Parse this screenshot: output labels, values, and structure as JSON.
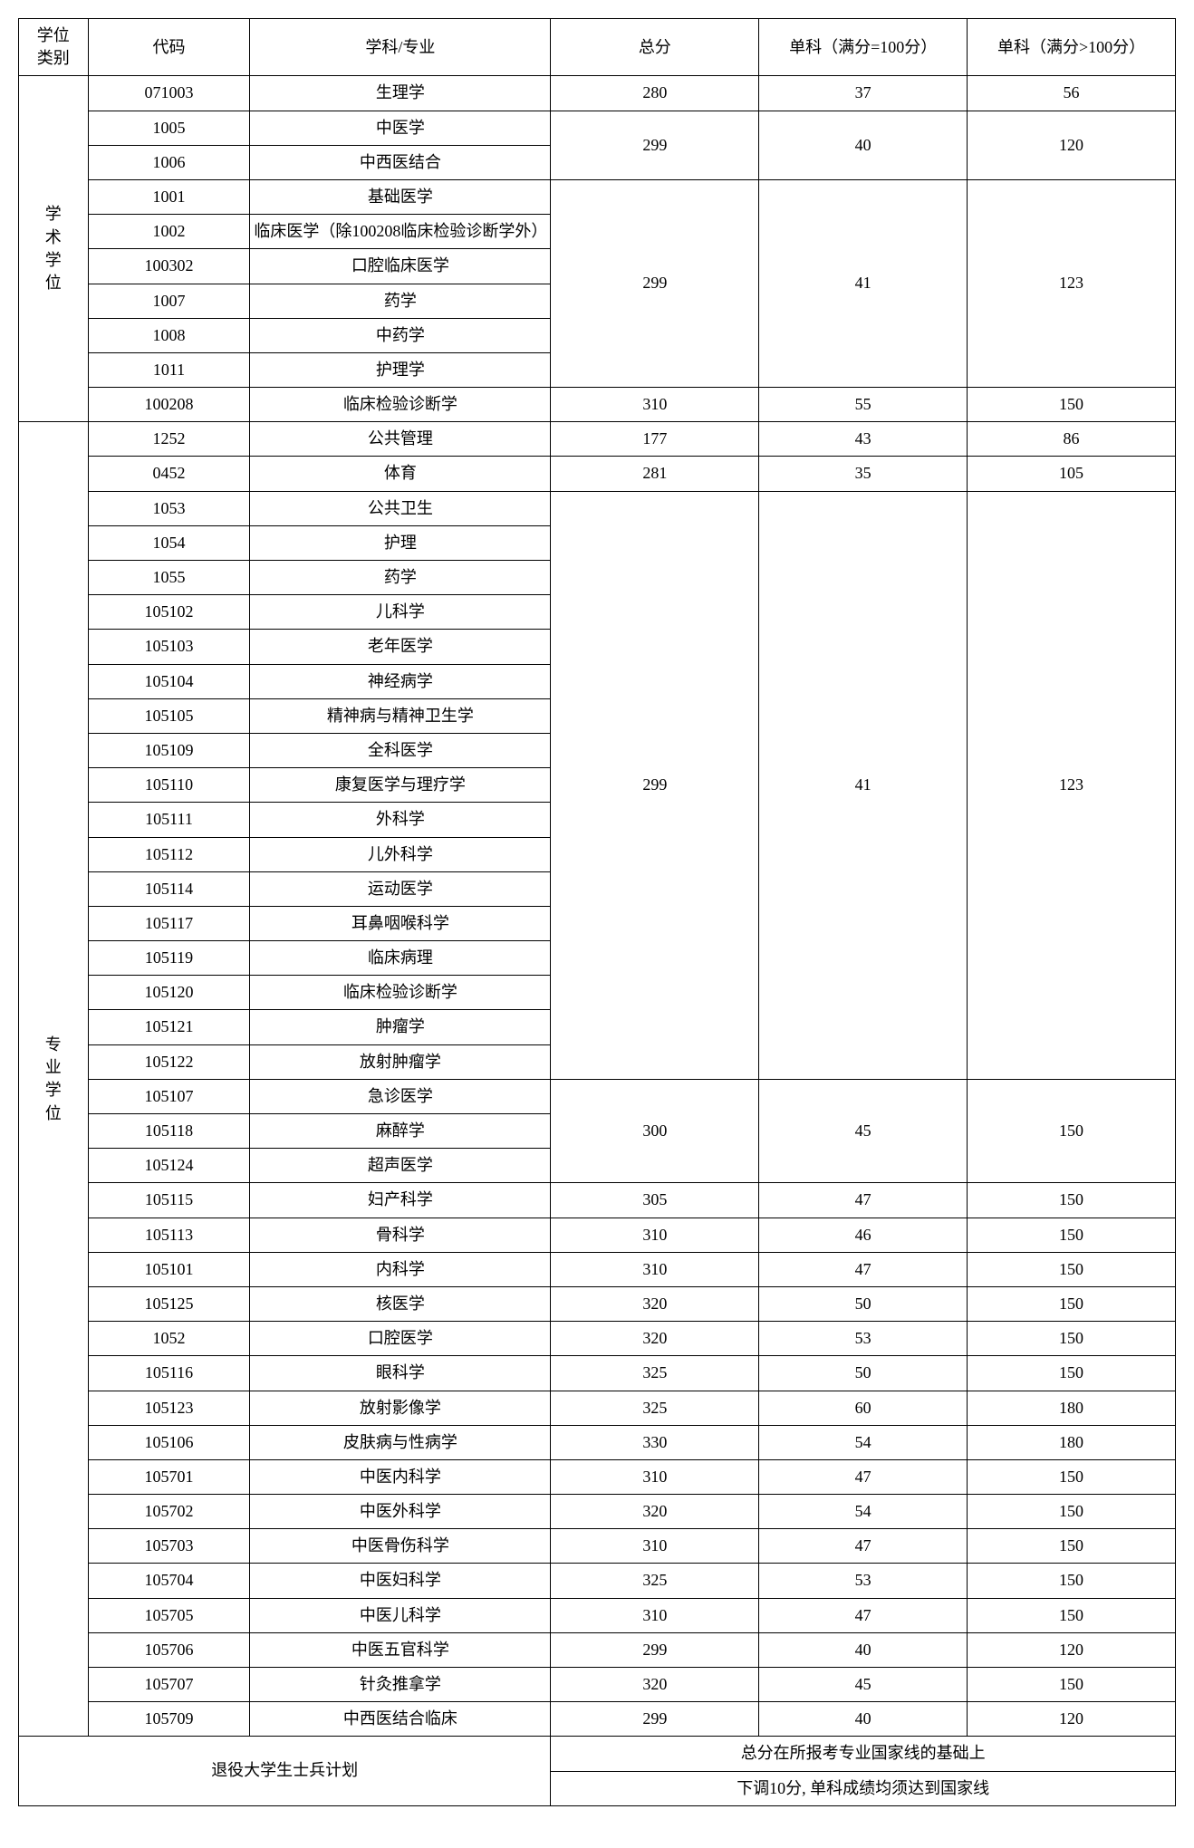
{
  "headers": {
    "category": "学位\n类别",
    "code": "代码",
    "major": "学科/专业",
    "total": "总分",
    "sub1": "单科（满分=100分）",
    "sub2": "单科（满分>100分）"
  },
  "cat_academic": "学术学位",
  "cat_professional": "专业学位",
  "academic": {
    "r1": {
      "code": "071003",
      "major": "生理学",
      "total": "280",
      "sub1": "37",
      "sub2": "56"
    },
    "r2": {
      "code": "1005",
      "major": "中医学"
    },
    "r3": {
      "code": "1006",
      "major": "中西医结合"
    },
    "g2_total": "299",
    "g2_sub1": "40",
    "g2_sub2": "120",
    "r4": {
      "code": "1001",
      "major": "基础医学"
    },
    "r5": {
      "code": "1002",
      "major": "临床医学（除100208临床检验诊断学外）"
    },
    "r6": {
      "code": "100302",
      "major": "口腔临床医学"
    },
    "r7": {
      "code": "1007",
      "major": "药学"
    },
    "r8": {
      "code": "1008",
      "major": "中药学"
    },
    "r9": {
      "code": "1011",
      "major": "护理学"
    },
    "g3_total": "299",
    "g3_sub1": "41",
    "g3_sub2": "123",
    "r10": {
      "code": "100208",
      "major": "临床检验诊断学",
      "total": "310",
      "sub1": "55",
      "sub2": "150"
    }
  },
  "professional": {
    "r1": {
      "code": "1252",
      "major": "公共管理",
      "total": "177",
      "sub1": "43",
      "sub2": "86"
    },
    "r2": {
      "code": "0452",
      "major": "体育",
      "total": "281",
      "sub1": "35",
      "sub2": "105"
    },
    "r3": {
      "code": "1053",
      "major": "公共卫生"
    },
    "r4": {
      "code": "1054",
      "major": "护理"
    },
    "r5": {
      "code": "1055",
      "major": "药学"
    },
    "r6": {
      "code": "105102",
      "major": "儿科学"
    },
    "r7": {
      "code": "105103",
      "major": "老年医学"
    },
    "r8": {
      "code": "105104",
      "major": "神经病学"
    },
    "r9": {
      "code": "105105",
      "major": "精神病与精神卫生学"
    },
    "r10": {
      "code": "105109",
      "major": "全科医学"
    },
    "r11": {
      "code": "105110",
      "major": "康复医学与理疗学"
    },
    "r12": {
      "code": "105111",
      "major": "外科学"
    },
    "r13": {
      "code": "105112",
      "major": "儿外科学"
    },
    "r14": {
      "code": "105114",
      "major": "运动医学"
    },
    "r15": {
      "code": "105117",
      "major": "耳鼻咽喉科学"
    },
    "r16": {
      "code": "105119",
      "major": "临床病理"
    },
    "r17": {
      "code": "105120",
      "major": "临床检验诊断学"
    },
    "r18": {
      "code": "105121",
      "major": "肿瘤学"
    },
    "r19": {
      "code": "105122",
      "major": "放射肿瘤学"
    },
    "g3_total": "299",
    "g3_sub1": "41",
    "g3_sub2": "123",
    "r20": {
      "code": "105107",
      "major": "急诊医学"
    },
    "r21": {
      "code": "105118",
      "major": "麻醉学"
    },
    "r22": {
      "code": "105124",
      "major": "超声医学"
    },
    "g4_total": "300",
    "g4_sub1": "45",
    "g4_sub2": "150",
    "r23": {
      "code": "105115",
      "major": "妇产科学",
      "total": "305",
      "sub1": "47",
      "sub2": "150"
    },
    "r24": {
      "code": "105113",
      "major": "骨科学",
      "total": "310",
      "sub1": "46",
      "sub2": "150"
    },
    "r25": {
      "code": "105101",
      "major": "内科学",
      "total": "310",
      "sub1": "47",
      "sub2": "150"
    },
    "r26": {
      "code": "105125",
      "major": "核医学",
      "total": "320",
      "sub1": "50",
      "sub2": "150"
    },
    "r27": {
      "code": "1052",
      "major": "口腔医学",
      "total": "320",
      "sub1": "53",
      "sub2": "150"
    },
    "r28": {
      "code": "105116",
      "major": "眼科学",
      "total": "325",
      "sub1": "50",
      "sub2": "150"
    },
    "r29": {
      "code": "105123",
      "major": "放射影像学",
      "total": "325",
      "sub1": "60",
      "sub2": "180"
    },
    "r30": {
      "code": "105106",
      "major": "皮肤病与性病学",
      "total": "330",
      "sub1": "54",
      "sub2": "180"
    },
    "r31": {
      "code": "105701",
      "major": "中医内科学",
      "total": "310",
      "sub1": "47",
      "sub2": "150"
    },
    "r32": {
      "code": "105702",
      "major": "中医外科学",
      "total": "320",
      "sub1": "54",
      "sub2": "150"
    },
    "r33": {
      "code": "105703",
      "major": "中医骨伤科学",
      "total": "310",
      "sub1": "47",
      "sub2": "150"
    },
    "r34": {
      "code": "105704",
      "major": "中医妇科学",
      "total": "325",
      "sub1": "53",
      "sub2": "150"
    },
    "r35": {
      "code": "105705",
      "major": "中医儿科学",
      "total": "310",
      "sub1": "47",
      "sub2": "150"
    },
    "r36": {
      "code": "105706",
      "major": "中医五官科学",
      "total": "299",
      "sub1": "40",
      "sub2": "120"
    },
    "r37": {
      "code": "105707",
      "major": "针灸推拿学",
      "total": "320",
      "sub1": "45",
      "sub2": "150"
    },
    "r38": {
      "code": "105709",
      "major": "中西医结合临床",
      "total": "299",
      "sub1": "40",
      "sub2": "120"
    }
  },
  "footer": {
    "left": "退役大学生士兵计划",
    "right_line1": "总分在所报考专业国家线的基础上",
    "right_line2": "下调10分, 单科成绩均须达到国家线"
  }
}
